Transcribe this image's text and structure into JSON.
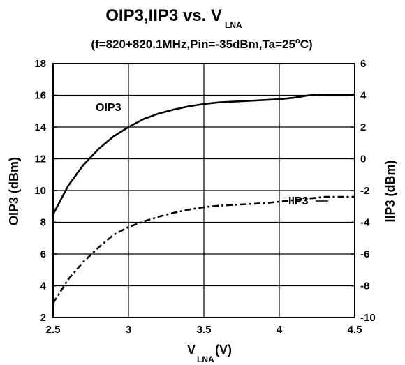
{
  "chart_data": {
    "type": "line",
    "title": {
      "main": "OIP3,IIP3 vs. V",
      "main_sub": "LNA"
    },
    "subtitle": {
      "pre": "(f=820+820.1MHz,Pin=-35dBm,Ta=25",
      "sup": "o",
      "post": "C)"
    },
    "xlabel": {
      "main": "V",
      "sub": "LNA",
      "post": " (V)"
    },
    "ylabel_left": "OIP3 (dBm)",
    "ylabel_right": "IIP3 (dBm)",
    "xlim": [
      2.5,
      4.5
    ],
    "ylim_left": [
      2,
      18
    ],
    "ylim_right": [
      -10,
      6
    ],
    "x_ticks": [
      "2.5",
      "3",
      "3.5",
      "4",
      "4.5"
    ],
    "y_ticks_left": [
      "2",
      "4",
      "6",
      "8",
      "10",
      "12",
      "14",
      "16",
      "18"
    ],
    "y_ticks_right": [
      "-10",
      "-8",
      "-6",
      "-4",
      "-2",
      "0",
      "2",
      "4",
      "6"
    ],
    "grid": true,
    "series": [
      {
        "name": "OIP3",
        "axis": "left",
        "style": "solid",
        "x": [
          2.5,
          2.6,
          2.7,
          2.8,
          2.9,
          3.0,
          3.1,
          3.2,
          3.3,
          3.4,
          3.5,
          3.6,
          3.7,
          3.8,
          3.9,
          4.0,
          4.1,
          4.2,
          4.3,
          4.4,
          4.5
        ],
        "y": [
          8.5,
          10.3,
          11.6,
          12.6,
          13.4,
          14.0,
          14.5,
          14.85,
          15.1,
          15.3,
          15.45,
          15.55,
          15.6,
          15.65,
          15.7,
          15.75,
          15.85,
          16.0,
          16.05,
          16.05,
          16.05
        ]
      },
      {
        "name": "IIP3",
        "axis": "right",
        "style": "dashdot",
        "x": [
          2.5,
          2.6,
          2.7,
          2.8,
          2.9,
          3.0,
          3.1,
          3.2,
          3.3,
          3.4,
          3.5,
          3.6,
          3.7,
          3.8,
          3.9,
          4.0,
          4.1,
          4.2,
          4.3,
          4.4,
          4.5
        ],
        "y": [
          -9.1,
          -7.6,
          -6.5,
          -5.6,
          -4.8,
          -4.3,
          -3.95,
          -3.65,
          -3.4,
          -3.2,
          -3.05,
          -2.95,
          -2.9,
          -2.85,
          -2.8,
          -2.7,
          -2.6,
          -2.5,
          -2.4,
          -2.4,
          -2.4
        ]
      }
    ],
    "annotations": [
      "OIP3",
      "IIP3"
    ]
  }
}
